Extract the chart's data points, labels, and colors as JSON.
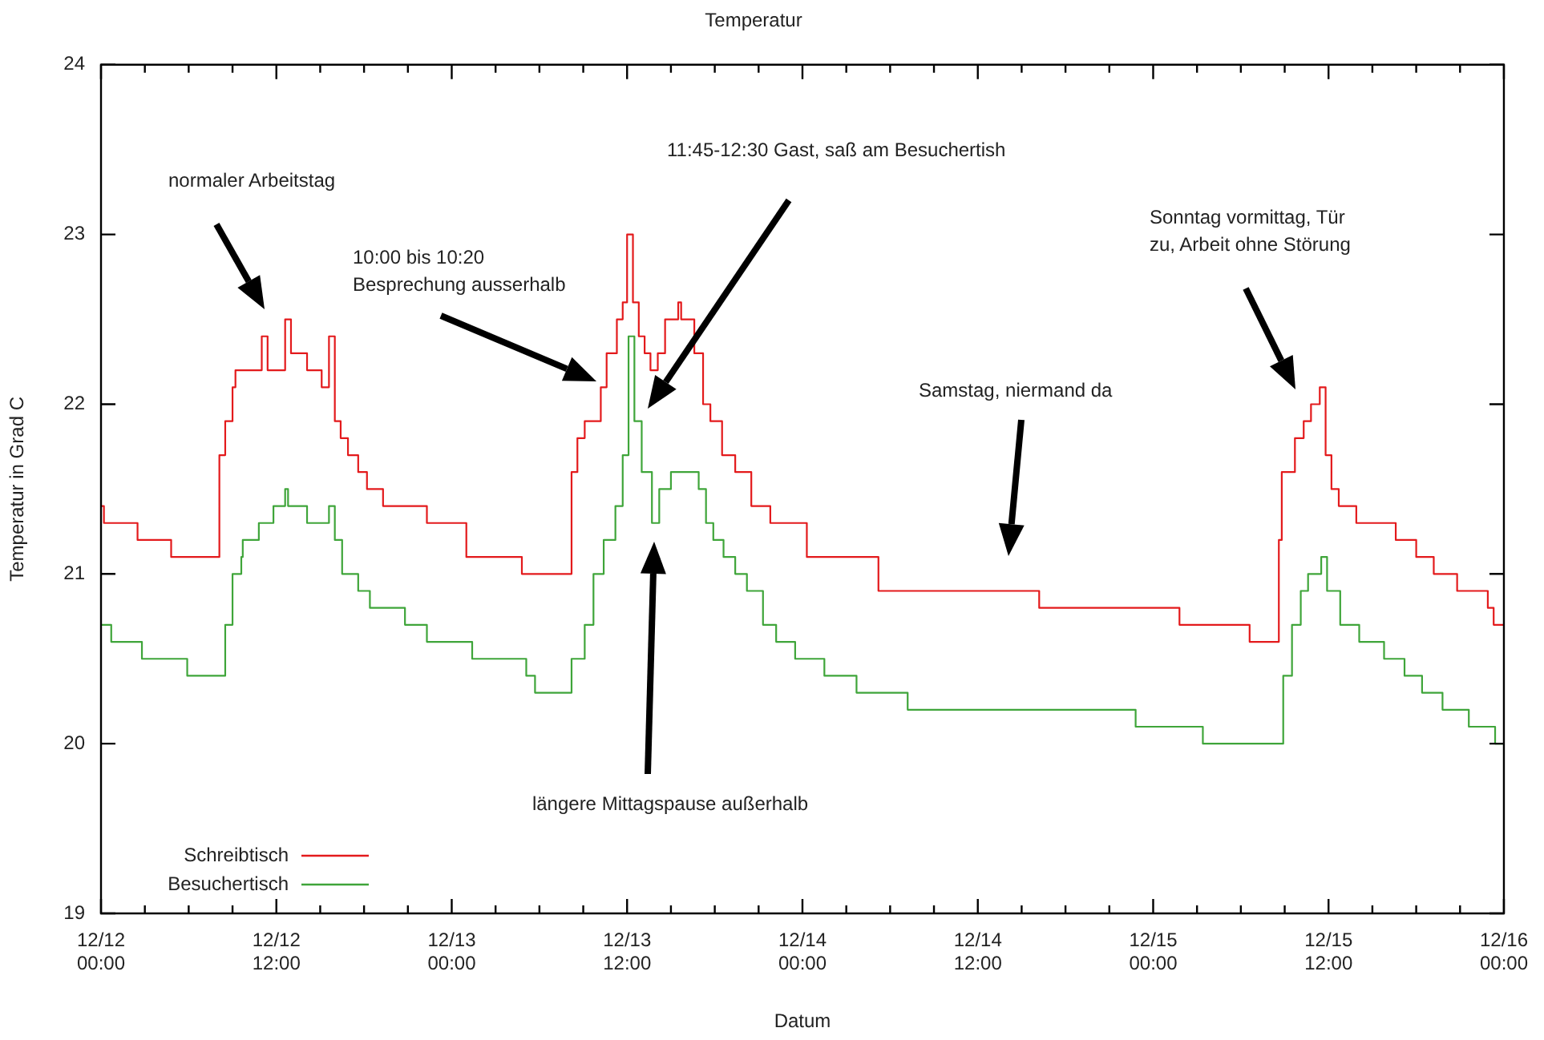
{
  "chart_data": {
    "type": "step",
    "title": "Temperatur",
    "xlabel": "Datum",
    "ylabel": "Temperatur in Grad C",
    "xlim": [
      "--12-12T00:00",
      "--12-16T00:00"
    ],
    "ylim": [
      19,
      24
    ],
    "xticks": [
      {
        "value": "--12-12T00:00",
        "label": "12/12\n00:00"
      },
      {
        "value": "--12-12T03:00",
        "label": null
      },
      {
        "value": "--12-12T06:00",
        "label": null
      },
      {
        "value": "--12-12T09:00",
        "label": null
      },
      {
        "value": "--12-12T12:00",
        "label": "12/12\n12:00"
      },
      {
        "value": "--12-12T15:00",
        "label": null
      },
      {
        "value": "--12-12T18:00",
        "label": null
      },
      {
        "value": "--12-12T21:00",
        "label": null
      },
      {
        "value": "--12-13T00:00",
        "label": "12/13\n00:00"
      },
      {
        "value": "--12-13T03:00",
        "label": null
      },
      {
        "value": "--12-13T06:00",
        "label": null
      },
      {
        "value": "--12-13T09:00",
        "label": null
      },
      {
        "value": "--12-13T12:00",
        "label": "12/13\n12:00"
      },
      {
        "value": "--12-13T15:00",
        "label": null
      },
      {
        "value": "--12-13T18:00",
        "label": null
      },
      {
        "value": "--12-13T21:00",
        "label": null
      },
      {
        "value": "--12-14T00:00",
        "label": "12/14\n00:00"
      },
      {
        "value": "--12-14T03:00",
        "label": null
      },
      {
        "value": "--12-14T06:00",
        "label": null
      },
      {
        "value": "--12-14T09:00",
        "label": null
      },
      {
        "value": "--12-14T12:00",
        "label": "12/14\n12:00"
      },
      {
        "value": "--12-14T15:00",
        "label": null
      },
      {
        "value": "--12-14T18:00",
        "label": null
      },
      {
        "value": "--12-14T21:00",
        "label": null
      },
      {
        "value": "--12-15T00:00",
        "label": "12/15\n00:00"
      },
      {
        "value": "--12-15T03:00",
        "label": null
      },
      {
        "value": "--12-15T06:00",
        "label": null
      },
      {
        "value": "--12-15T09:00",
        "label": null
      },
      {
        "value": "--12-15T12:00",
        "label": "12/15\n12:00"
      },
      {
        "value": "--12-15T15:00",
        "label": null
      },
      {
        "value": "--12-15T18:00",
        "label": null
      },
      {
        "value": "--12-15T21:00",
        "label": null
      },
      {
        "value": "--12-16T00:00",
        "label": "12/16\n00:00"
      }
    ],
    "yticks": [
      19,
      20,
      21,
      22,
      23,
      24
    ],
    "legend": "bottom left",
    "marker": "none",
    "grid": false,
    "series": [
      {
        "name": "Schreibtisch",
        "color": "#e31a1c",
        "x": [
          "--12-12T00:00",
          "--12-12T00:12",
          "--12-12T02:30",
          "--12-12T04:48",
          "--12-12T08:06",
          "--12-12T08:30",
          "--12-12T09:00",
          "--12-12T09:12",
          "--12-12T11:00",
          "--12-12T11:24",
          "--12-12T12:36",
          "--12-12T13:00",
          "--12-12T14:06",
          "--12-12T15:06",
          "--12-12T15:36",
          "--12-12T16:00",
          "--12-12T16:24",
          "--12-12T16:54",
          "--12-12T17:36",
          "--12-12T18:12",
          "--12-12T19:18",
          "--12-12T22:18",
          "--12-13T01:00",
          "--12-13T04:48",
          "--12-13T08:12",
          "--12-13T08:36",
          "--12-13T09:06",
          "--12-13T10:12",
          "--12-13T10:36",
          "--12-13T11:18",
          "--12-13T11:42",
          "--12-13T12:00",
          "--12-13T12:24",
          "--12-13T12:48",
          "--12-13T13:12",
          "--12-13T13:36",
          "--12-13T14:06",
          "--12-13T14:36",
          "--12-13T15:30",
          "--12-13T15:42",
          "--12-13T16:36",
          "--12-13T17:12",
          "--12-13T17:42",
          "--12-13T18:30",
          "--12-13T19:24",
          "--12-13T20:30",
          "--12-13T21:48",
          "--12-14T00:18",
          "--12-14T05:12",
          "--12-14T16:12",
          "--12-15T01:48",
          "--12-15T06:36",
          "--12-15T08:36",
          "--12-15T08:48",
          "--12-15T09:42",
          "--12-15T10:18",
          "--12-15T10:48",
          "--12-15T11:24",
          "--12-15T11:48",
          "--12-15T12:12",
          "--12-15T12:42",
          "--12-15T13:54",
          "--12-15T16:36",
          "--12-15T18:00",
          "--12-15T19:12",
          "--12-15T20:48",
          "--12-15T22:54",
          "--12-15T23:18",
          "--12-16T00:00"
        ],
        "values": [
          21.4,
          21.3,
          21.2,
          21.1,
          21.7,
          21.9,
          22.1,
          22.2,
          22.4,
          22.2,
          22.5,
          22.3,
          22.2,
          22.1,
          22.4,
          21.9,
          21.8,
          21.7,
          21.6,
          21.5,
          21.4,
          21.3,
          21.1,
          21.0,
          21.6,
          21.8,
          21.9,
          22.1,
          22.3,
          22.5,
          22.6,
          23.0,
          22.6,
          22.4,
          22.3,
          22.2,
          22.3,
          22.5,
          22.6,
          22.5,
          22.3,
          22.0,
          21.9,
          21.7,
          21.6,
          21.4,
          21.3,
          21.1,
          20.9,
          20.8,
          20.7,
          20.6,
          21.2,
          21.6,
          21.8,
          21.9,
          22.0,
          22.1,
          21.7,
          21.5,
          21.4,
          21.3,
          21.2,
          21.1,
          21.0,
          20.9,
          20.8,
          20.7,
          20.7
        ]
      },
      {
        "name": "Besuchertisch",
        "color": "#3fa53a",
        "x": [
          "--12-12T00:00",
          "--12-12T00:42",
          "--12-12T02:48",
          "--12-12T05:54",
          "--12-12T08:30",
          "--12-12T09:00",
          "--12-12T09:36",
          "--12-12T09:42",
          "--12-12T10:48",
          "--12-12T11:48",
          "--12-12T12:36",
          "--12-12T12:48",
          "--12-12T14:06",
          "--12-12T15:36",
          "--12-12T16:00",
          "--12-12T16:30",
          "--12-12T17:36",
          "--12-12T18:24",
          "--12-12T20:48",
          "--12-12T22:18",
          "--12-13T01:24",
          "--12-13T05:06",
          "--12-13T05:42",
          "--12-13T08:12",
          "--12-13T09:06",
          "--12-13T09:42",
          "--12-13T10:24",
          "--12-13T11:12",
          "--12-13T11:42",
          "--12-13T12:06",
          "--12-13T12:30",
          "--12-13T13:00",
          "--12-13T13:42",
          "--12-13T14:12",
          "--12-13T15:00",
          "--12-13T16:54",
          "--12-13T17:24",
          "--12-13T17:54",
          "--12-13T18:36",
          "--12-13T19:24",
          "--12-13T20:12",
          "--12-13T21:18",
          "--12-13T22:12",
          "--12-13T23:30",
          "--12-14T01:30",
          "--12-14T03:42",
          "--12-14T07:12",
          "--12-14T22:48",
          "--12-15T03:24",
          "--12-15T08:54",
          "--12-15T09:30",
          "--12-15T10:06",
          "--12-15T10:36",
          "--12-15T11:30",
          "--12-15T11:54",
          "--12-15T12:48",
          "--12-15T14:06",
          "--12-15T15:48",
          "--12-15T17:12",
          "--12-15T18:24",
          "--12-15T19:48",
          "--12-15T21:36",
          "--12-15T23:24",
          "--12-16T00:00"
        ],
        "values": [
          20.7,
          20.6,
          20.5,
          20.4,
          20.7,
          21.0,
          21.1,
          21.2,
          21.3,
          21.4,
          21.5,
          21.4,
          21.3,
          21.4,
          21.2,
          21.0,
          20.9,
          20.8,
          20.7,
          20.6,
          20.5,
          20.4,
          20.3,
          20.5,
          20.7,
          21.0,
          21.2,
          21.4,
          21.7,
          22.4,
          21.9,
          21.6,
          21.3,
          21.5,
          21.6,
          21.5,
          21.3,
          21.2,
          21.1,
          21.0,
          20.9,
          20.7,
          20.6,
          20.5,
          20.4,
          20.3,
          20.2,
          20.1,
          20.0,
          20.4,
          20.7,
          20.9,
          21.0,
          21.1,
          20.9,
          20.7,
          20.6,
          20.5,
          20.4,
          20.3,
          20.2,
          20.1,
          20.0,
          20.0
        ]
      }
    ],
    "annotations": [
      "normaler Arbeitstag",
      "10:00 bis 10:20\nBesprechung ausserhalb",
      "11:45-12:30 Gast, saß am Besuchertish",
      "längere Mittagspause außerhalb",
      "Samstag, niermand da",
      "Sonntag vormittag, Tür\nzu, Arbeit ohne Störung"
    ]
  }
}
